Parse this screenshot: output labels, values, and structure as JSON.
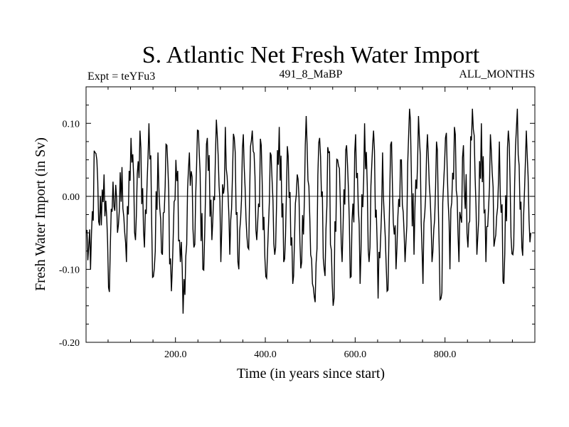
{
  "chart_data": {
    "type": "line",
    "title": "S. Atlantic Net Fresh Water Import",
    "subtitle_left": "Expt = teYFu3",
    "subtitle_center": "491_8_MaBP",
    "subtitle_right": "ALL_MONTHS",
    "xlabel": "Time (in years since start)",
    "ylabel": "Fresh Water Import (in Sv)",
    "xlim": [
      1,
      1000
    ],
    "ylim": [
      -0.2,
      0.15
    ],
    "x_ticks": [
      200,
      400,
      600,
      800
    ],
    "x_tick_labels": [
      "200.0",
      "400.0",
      "600.0",
      "800.0"
    ],
    "y_ticks": [
      -0.2,
      -0.1,
      0.0,
      0.1
    ],
    "y_tick_labels": [
      "-0.20",
      "-0.10",
      "0.00",
      "0.10"
    ],
    "zero_line": 0.0,
    "series": [
      {
        "name": "Net Fresh Water Import",
        "x_start": 1,
        "x_step": 10,
        "values": [
          -0.05,
          -0.1,
          0.06,
          -0.04,
          0.03,
          -0.125,
          0.02,
          -0.05,
          0.04,
          -0.09,
          0.08,
          -0.06,
          0.09,
          -0.07,
          0.1,
          -0.11,
          0.06,
          -0.08,
          0.07,
          -0.13,
          0.05,
          -0.09,
          -0.135,
          0.06,
          -0.07,
          0.09,
          -0.1,
          0.08,
          -0.06,
          0.105,
          -0.09,
          0.095,
          -0.08,
          0.08,
          -0.1,
          0.085,
          -0.07,
          0.09,
          -0.06,
          0.07,
          -0.11,
          0.06,
          -0.08,
          0.095,
          -0.09,
          0.055,
          -0.12,
          0.03,
          -0.09,
          0.11,
          -0.08,
          -0.145,
          0.08,
          -0.1,
          0.06,
          -0.15,
          0.05,
          -0.09,
          0.07,
          -0.11,
          0.085,
          -0.12,
          0.1,
          -0.09,
          0.09,
          -0.14,
          0.06,
          -0.13,
          0.075,
          -0.1,
          0.05,
          -0.09,
          0.12,
          -0.08,
          0.11,
          -0.12,
          0.085,
          -0.09,
          0.075,
          -0.14,
          0.08,
          -0.1,
          0.095,
          -0.09,
          0.07,
          -0.07,
          0.12,
          -0.08,
          0.1,
          -0.09,
          0.085,
          -0.06,
          0.075,
          -0.12,
          0.09,
          -0.08,
          0.12,
          -0.07,
          0.09,
          -0.05
        ]
      }
    ]
  }
}
